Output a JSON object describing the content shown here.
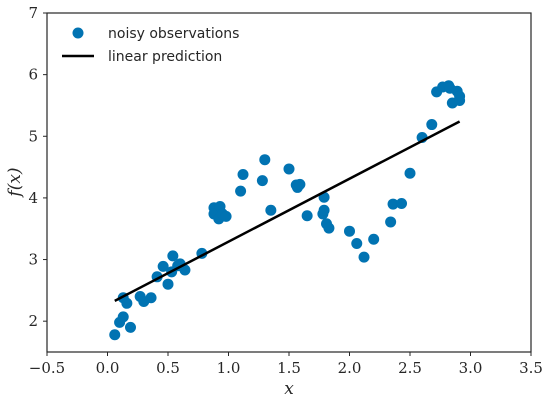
{
  "chart_data": {
    "type": "scatter",
    "xlabel": "x",
    "ylabel": "f(x)",
    "xlim": [
      -0.5,
      3.5
    ],
    "ylim": [
      1.5,
      7.0
    ],
    "xticks": [
      "−0.5",
      "0.0",
      "0.5",
      "1.0",
      "1.5",
      "2.0",
      "2.5",
      "3.0",
      "3.5"
    ],
    "yticks": [
      "2",
      "3",
      "4",
      "5",
      "6",
      "7"
    ],
    "legend_position": "top-left",
    "grid": false,
    "series": [
      {
        "name": "noisy observations",
        "kind": "scatter",
        "color": "#0173b2",
        "points": [
          [
            0.06,
            1.78
          ],
          [
            0.1,
            1.98
          ],
          [
            0.13,
            2.07
          ],
          [
            0.13,
            2.38
          ],
          [
            0.16,
            2.29
          ],
          [
            0.19,
            1.9
          ],
          [
            0.27,
            2.4
          ],
          [
            0.3,
            2.32
          ],
          [
            0.36,
            2.38
          ],
          [
            0.41,
            2.72
          ],
          [
            0.46,
            2.89
          ],
          [
            0.5,
            2.6
          ],
          [
            0.53,
            2.8
          ],
          [
            0.54,
            3.06
          ],
          [
            0.58,
            2.9
          ],
          [
            0.6,
            2.93
          ],
          [
            0.64,
            2.83
          ],
          [
            0.78,
            3.1
          ],
          [
            0.88,
            3.84
          ],
          [
            0.88,
            3.74
          ],
          [
            0.92,
            3.66
          ],
          [
            0.93,
            3.86
          ],
          [
            0.95,
            3.74
          ],
          [
            0.98,
            3.7
          ],
          [
            1.1,
            4.11
          ],
          [
            1.12,
            4.38
          ],
          [
            1.28,
            4.28
          ],
          [
            1.3,
            4.62
          ],
          [
            1.35,
            3.8
          ],
          [
            1.5,
            4.47
          ],
          [
            1.56,
            4.21
          ],
          [
            1.57,
            4.17
          ],
          [
            1.59,
            4.22
          ],
          [
            1.65,
            3.71
          ],
          [
            1.78,
            3.74
          ],
          [
            1.79,
            3.8
          ],
          [
            1.79,
            4.01
          ],
          [
            1.81,
            3.58
          ],
          [
            1.83,
            3.51
          ],
          [
            2.0,
            3.46
          ],
          [
            2.06,
            3.26
          ],
          [
            2.12,
            3.04
          ],
          [
            2.2,
            3.33
          ],
          [
            2.34,
            3.61
          ],
          [
            2.36,
            3.9
          ],
          [
            2.43,
            3.91
          ],
          [
            2.5,
            4.4
          ],
          [
            2.6,
            4.98
          ],
          [
            2.68,
            5.19
          ],
          [
            2.72,
            5.72
          ],
          [
            2.77,
            5.8
          ],
          [
            2.82,
            5.82
          ],
          [
            2.83,
            5.78
          ],
          [
            2.85,
            5.54
          ],
          [
            2.89,
            5.73
          ],
          [
            2.91,
            5.65
          ],
          [
            2.91,
            5.58
          ]
        ]
      },
      {
        "name": "linear prediction",
        "kind": "line",
        "color": "#000000",
        "points": [
          [
            0.06,
            2.33
          ],
          [
            2.91,
            5.24
          ]
        ]
      }
    ]
  }
}
